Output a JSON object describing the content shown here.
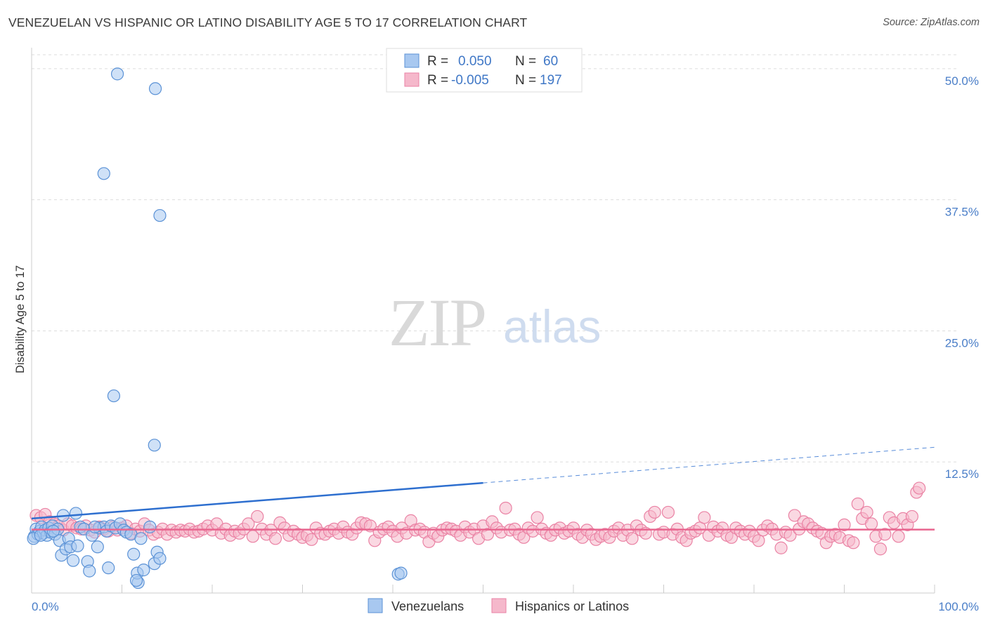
{
  "title": "VENEZUELAN VS HISPANIC OR LATINO DISABILITY AGE 5 TO 17 CORRELATION CHART",
  "source": "Source: ZipAtlas.com",
  "watermark": {
    "zip": "ZIP",
    "atlas": "atlas"
  },
  "colors": {
    "blue_fill": "#a8c8f0",
    "blue_stroke": "#5b92d6",
    "blue_line": "#2e6fcf",
    "pink_fill": "#f5b8cb",
    "pink_stroke": "#ea82a4",
    "pink_line": "#e8668f",
    "tick_text": "#4a7ec8",
    "grid": "#dddddd"
  },
  "legend": {
    "rows": [
      {
        "r_label": "R =",
        "r_value": "0.050",
        "n_label": "N =",
        "n_value": "60",
        "series": "blue"
      },
      {
        "r_label": "R =",
        "r_value": "-0.005",
        "n_label": "N =",
        "n_value": "197",
        "series": "pink"
      }
    ]
  },
  "chart_data": {
    "type": "scatter",
    "title": "VENEZUELAN VS HISPANIC OR LATINO DISABILITY AGE 5 TO 17 CORRELATION CHART",
    "xlabel": "",
    "ylabel": "Disability Age 5 to 17",
    "xlim": [
      0,
      100
    ],
    "ylim": [
      0,
      52
    ],
    "x_tick_labels": [
      {
        "value": 0,
        "label": "0.0%"
      },
      {
        "value": 100,
        "label": "100.0%"
      }
    ],
    "y_ticks": [
      {
        "value": 12.5,
        "label": "12.5%"
      },
      {
        "value": 25,
        "label": "25.0%"
      },
      {
        "value": 37.5,
        "label": "37.5%"
      },
      {
        "value": 50,
        "label": "50.0%"
      }
    ],
    "grid": true,
    "series": [
      {
        "name": "Venezuelans",
        "color": "blue",
        "points": [
          [
            0.3,
            5.4
          ],
          [
            0.5,
            6.1
          ],
          [
            0.7,
            5.6
          ],
          [
            0.9,
            5.9
          ],
          [
            1.1,
            6.3
          ],
          [
            1.3,
            5.7
          ],
          [
            1.5,
            6.0
          ],
          [
            1.7,
            5.5
          ],
          [
            1.9,
            6.2
          ],
          [
            2.1,
            5.8
          ],
          [
            2.3,
            6.4
          ],
          [
            2.6,
            5.6
          ],
          [
            2.9,
            6.1
          ],
          [
            3.1,
            5.0
          ],
          [
            3.3,
            3.6
          ],
          [
            3.5,
            7.4
          ],
          [
            3.8,
            4.2
          ],
          [
            4.1,
            5.2
          ],
          [
            4.3,
            4.4
          ],
          [
            4.6,
            3.1
          ],
          [
            4.9,
            7.6
          ],
          [
            5.1,
            4.5
          ],
          [
            5.4,
            6.3
          ],
          [
            5.8,
            6.1
          ],
          [
            6.2,
            3.0
          ],
          [
            6.4,
            2.1
          ],
          [
            6.7,
            5.5
          ],
          [
            7.3,
            4.4
          ],
          [
            7.5,
            6.2
          ],
          [
            8.0,
            6.3
          ],
          [
            8.3,
            5.9
          ],
          [
            8.5,
            2.4
          ],
          [
            8.8,
            6.4
          ],
          [
            9.3,
            6.2
          ],
          [
            9.8,
            6.6
          ],
          [
            10.2,
            6.0
          ],
          [
            10.5,
            5.8
          ],
          [
            11.0,
            5.6
          ],
          [
            11.3,
            3.7
          ],
          [
            11.8,
            1.0
          ],
          [
            11.7,
            1.9
          ],
          [
            12.1,
            5.2
          ],
          [
            12.4,
            2.2
          ],
          [
            13.1,
            6.3
          ],
          [
            13.6,
            2.8
          ],
          [
            13.9,
            3.9
          ],
          [
            14.2,
            3.3
          ],
          [
            0.2,
            5.2
          ],
          [
            1.0,
            5.5
          ],
          [
            2.4,
            5.9
          ],
          [
            9.5,
            49.5
          ],
          [
            13.7,
            48.1
          ],
          [
            8.0,
            40.0
          ],
          [
            14.2,
            36.0
          ],
          [
            9.1,
            18.8
          ],
          [
            13.6,
            14.1
          ],
          [
            40.6,
            1.8
          ],
          [
            40.9,
            1.9
          ],
          [
            11.6,
            1.2
          ],
          [
            7.0,
            6.3
          ]
        ]
      },
      {
        "name": "Hispanics or Latinos",
        "color": "pink",
        "points": [
          [
            0.5,
            7.4
          ],
          [
            1.0,
            7.2
          ],
          [
            1.5,
            7.5
          ],
          [
            2.0,
            6.8
          ],
          [
            2.5,
            6.6
          ],
          [
            3.0,
            6.4
          ],
          [
            3.5,
            6.0
          ],
          [
            4.0,
            6.6
          ],
          [
            4.5,
            6.4
          ],
          [
            5.0,
            6.2
          ],
          [
            5.5,
            6.1
          ],
          [
            6.0,
            6.4
          ],
          [
            6.5,
            6.0
          ],
          [
            7.0,
            5.8
          ],
          [
            7.5,
            6.3
          ],
          [
            8.0,
            6.1
          ],
          [
            8.5,
            5.9
          ],
          [
            9.0,
            6.3
          ],
          [
            9.5,
            6.0
          ],
          [
            10.0,
            6.2
          ],
          [
            10.5,
            6.4
          ],
          [
            11.0,
            5.7
          ],
          [
            11.5,
            6.1
          ],
          [
            12.0,
            5.9
          ],
          [
            12.5,
            6.6
          ],
          [
            13.0,
            6.0
          ],
          [
            13.5,
            5.6
          ],
          [
            14.0,
            5.8
          ],
          [
            14.5,
            6.1
          ],
          [
            15.0,
            5.6
          ],
          [
            15.5,
            6.0
          ],
          [
            16.0,
            5.8
          ],
          [
            16.5,
            6.0
          ],
          [
            17.0,
            5.9
          ],
          [
            17.5,
            6.1
          ],
          [
            18.0,
            5.8
          ],
          [
            18.5,
            5.9
          ],
          [
            19.0,
            6.1
          ],
          [
            19.5,
            6.4
          ],
          [
            20.0,
            6.0
          ],
          [
            20.5,
            6.6
          ],
          [
            21.0,
            5.7
          ],
          [
            21.5,
            6.1
          ],
          [
            22.0,
            5.5
          ],
          [
            22.5,
            5.9
          ],
          [
            23.0,
            5.7
          ],
          [
            23.5,
            6.1
          ],
          [
            24.0,
            6.6
          ],
          [
            24.5,
            5.4
          ],
          [
            25.0,
            7.3
          ],
          [
            25.5,
            6.1
          ],
          [
            26.0,
            5.6
          ],
          [
            26.5,
            6.0
          ],
          [
            27.0,
            5.2
          ],
          [
            27.5,
            6.7
          ],
          [
            28.0,
            6.2
          ],
          [
            28.5,
            5.5
          ],
          [
            29.0,
            5.9
          ],
          [
            29.5,
            5.6
          ],
          [
            30.0,
            5.3
          ],
          [
            30.5,
            5.5
          ],
          [
            31.0,
            5.1
          ],
          [
            31.5,
            6.2
          ],
          [
            32.0,
            5.7
          ],
          [
            32.5,
            5.6
          ],
          [
            33.0,
            5.9
          ],
          [
            33.5,
            6.1
          ],
          [
            34.0,
            5.7
          ],
          [
            34.5,
            6.3
          ],
          [
            35.0,
            5.8
          ],
          [
            35.5,
            5.6
          ],
          [
            36.0,
            6.2
          ],
          [
            36.5,
            6.7
          ],
          [
            37.0,
            6.6
          ],
          [
            37.5,
            6.4
          ],
          [
            38.0,
            5.0
          ],
          [
            38.5,
            5.8
          ],
          [
            39.0,
            6.1
          ],
          [
            39.5,
            6.3
          ],
          [
            40.0,
            5.9
          ],
          [
            40.5,
            5.4
          ],
          [
            41.0,
            6.2
          ],
          [
            41.5,
            5.7
          ],
          [
            42.0,
            6.9
          ],
          [
            42.5,
            6.0
          ],
          [
            43.0,
            6.1
          ],
          [
            43.5,
            5.8
          ],
          [
            44.0,
            4.9
          ],
          [
            44.5,
            5.7
          ],
          [
            45.0,
            5.4
          ],
          [
            45.5,
            6.0
          ],
          [
            46.0,
            6.2
          ],
          [
            46.5,
            6.1
          ],
          [
            47.0,
            5.9
          ],
          [
            47.5,
            5.5
          ],
          [
            48.0,
            6.3
          ],
          [
            48.5,
            5.8
          ],
          [
            49.0,
            6.1
          ],
          [
            49.5,
            5.2
          ],
          [
            50.0,
            6.4
          ],
          [
            50.5,
            5.6
          ],
          [
            51.0,
            6.8
          ],
          [
            51.5,
            6.2
          ],
          [
            52.0,
            5.8
          ],
          [
            52.5,
            8.1
          ],
          [
            53.0,
            6.0
          ],
          [
            53.5,
            6.1
          ],
          [
            54.0,
            5.6
          ],
          [
            54.5,
            5.3
          ],
          [
            55.0,
            6.2
          ],
          [
            55.5,
            5.9
          ],
          [
            56.0,
            7.2
          ],
          [
            56.5,
            6.1
          ],
          [
            57.0,
            5.7
          ],
          [
            57.5,
            5.5
          ],
          [
            58.0,
            6.0
          ],
          [
            58.5,
            6.2
          ],
          [
            59.0,
            5.7
          ],
          [
            59.5,
            5.9
          ],
          [
            60.0,
            6.2
          ],
          [
            60.5,
            5.6
          ],
          [
            61.0,
            5.3
          ],
          [
            61.5,
            6.0
          ],
          [
            62.0,
            5.6
          ],
          [
            62.5,
            5.1
          ],
          [
            63.0,
            5.4
          ],
          [
            63.5,
            5.6
          ],
          [
            64.0,
            5.3
          ],
          [
            64.5,
            5.9
          ],
          [
            65.0,
            6.2
          ],
          [
            65.5,
            5.5
          ],
          [
            66.0,
            6.0
          ],
          [
            66.5,
            5.2
          ],
          [
            67.0,
            6.4
          ],
          [
            67.5,
            6.0
          ],
          [
            68.0,
            5.7
          ],
          [
            68.5,
            7.3
          ],
          [
            69.0,
            7.7
          ],
          [
            69.5,
            5.6
          ],
          [
            70.0,
            5.8
          ],
          [
            70.5,
            7.7
          ],
          [
            71.0,
            5.6
          ],
          [
            71.5,
            6.1
          ],
          [
            72.0,
            5.3
          ],
          [
            72.5,
            5.0
          ],
          [
            73.0,
            5.7
          ],
          [
            73.5,
            5.9
          ],
          [
            74.0,
            6.2
          ],
          [
            74.5,
            7.2
          ],
          [
            75.0,
            5.5
          ],
          [
            75.5,
            6.3
          ],
          [
            76.0,
            5.9
          ],
          [
            76.5,
            6.2
          ],
          [
            77.0,
            5.5
          ],
          [
            77.5,
            5.3
          ],
          [
            78.0,
            6.2
          ],
          [
            78.5,
            5.9
          ],
          [
            79.0,
            5.6
          ],
          [
            79.5,
            5.9
          ],
          [
            80.0,
            5.4
          ],
          [
            80.5,
            5.0
          ],
          [
            81.0,
            6.0
          ],
          [
            81.5,
            6.4
          ],
          [
            82.0,
            6.1
          ],
          [
            82.5,
            5.6
          ],
          [
            83.0,
            4.3
          ],
          [
            83.5,
            5.8
          ],
          [
            84.0,
            5.5
          ],
          [
            84.5,
            7.4
          ],
          [
            85.0,
            6.1
          ],
          [
            85.5,
            6.8
          ],
          [
            86.0,
            6.6
          ],
          [
            86.5,
            6.2
          ],
          [
            87.0,
            5.9
          ],
          [
            87.5,
            5.7
          ],
          [
            88.0,
            4.8
          ],
          [
            88.5,
            5.4
          ],
          [
            89.0,
            5.6
          ],
          [
            89.5,
            5.3
          ],
          [
            90.0,
            6.5
          ],
          [
            90.5,
            5.0
          ],
          [
            91.0,
            4.8
          ],
          [
            91.5,
            8.5
          ],
          [
            92.0,
            7.1
          ],
          [
            92.5,
            7.7
          ],
          [
            93.0,
            6.6
          ],
          [
            93.5,
            5.4
          ],
          [
            94.0,
            4.2
          ],
          [
            94.5,
            5.6
          ],
          [
            95.0,
            7.2
          ],
          [
            95.5,
            6.7
          ],
          [
            96.0,
            5.4
          ],
          [
            96.5,
            7.1
          ],
          [
            97.0,
            6.5
          ],
          [
            97.5,
            7.3
          ],
          [
            98.0,
            9.6
          ],
          [
            98.3,
            10.0
          ]
        ]
      }
    ],
    "trendlines": [
      {
        "series": "Venezuelans",
        "solid_from": [
          0,
          7.1
        ],
        "solid_to": [
          50,
          10.5
        ],
        "dashed_to": [
          100,
          13.9
        ]
      },
      {
        "series": "Hispanics or Latinos",
        "from": [
          0,
          6.05
        ],
        "to": [
          100,
          6.05
        ]
      }
    ],
    "bottom_legend": [
      "Venezuelans",
      "Hispanics or Latinos"
    ]
  }
}
